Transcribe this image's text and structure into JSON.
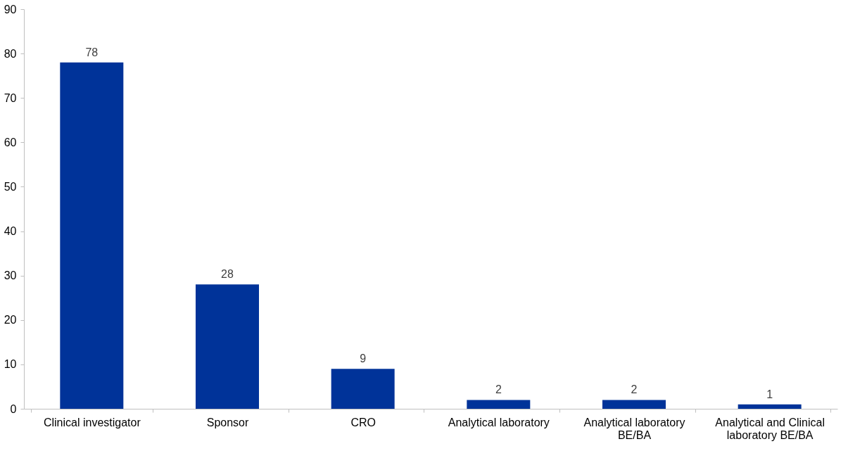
{
  "chart_data": {
    "type": "bar",
    "categories": [
      "Clinical investigator",
      "Sponsor",
      "CRO",
      "Analytical laboratory",
      "Analytical laboratory BE/BA",
      "Analytical and Clinical laboratory BE/BA"
    ],
    "values": [
      78,
      28,
      9,
      2,
      2,
      1
    ],
    "color": "#003399",
    "ylim": [
      0,
      90
    ],
    "yticks": [
      0,
      10,
      20,
      30,
      40,
      50,
      60,
      70,
      80,
      90
    ],
    "grid": false,
    "data_labels": true
  }
}
